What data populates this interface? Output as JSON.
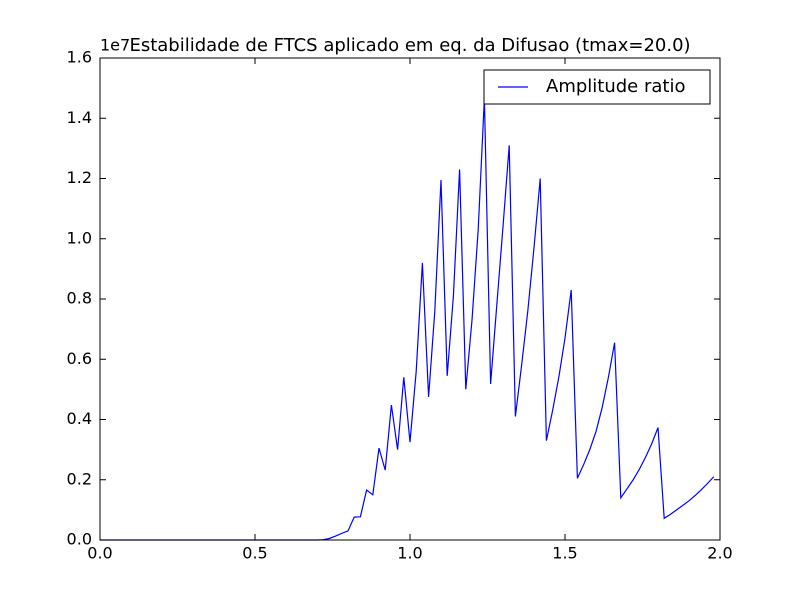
{
  "chart_data": {
    "type": "line",
    "title": "Estabilidade de FTCS aplicado em eq. da Difusao (tmax=20.0)",
    "offset_label": "1e7",
    "x": [
      0,
      0.02,
      0.04,
      0.06,
      0.08,
      0.1,
      0.12,
      0.14,
      0.16,
      0.18,
      0.2,
      0.22,
      0.24,
      0.26,
      0.28,
      0.3,
      0.32,
      0.34,
      0.36,
      0.38,
      0.4,
      0.42,
      0.44,
      0.46,
      0.48,
      0.5,
      0.52,
      0.54,
      0.56,
      0.58,
      0.6,
      0.62,
      0.64,
      0.66,
      0.68,
      0.7,
      0.72,
      0.74,
      0.76,
      0.78,
      0.8,
      0.82,
      0.84,
      0.86,
      0.88,
      0.9,
      0.92,
      0.94,
      0.96,
      0.98,
      1.0,
      1.02,
      1.04,
      1.06,
      1.08,
      1.1,
      1.12,
      1.14,
      1.16,
      1.18,
      1.2,
      1.22,
      1.24,
      1.26,
      1.28,
      1.3,
      1.32,
      1.34,
      1.36,
      1.38,
      1.4,
      1.42,
      1.44,
      1.46,
      1.48,
      1.5,
      1.52,
      1.54,
      1.56,
      1.58,
      1.6,
      1.62,
      1.64,
      1.66,
      1.68,
      1.7,
      1.72,
      1.74,
      1.76,
      1.78,
      1.8,
      1.82,
      1.84,
      1.86,
      1.88,
      1.9,
      1.92,
      1.94,
      1.96,
      1.98
    ],
    "series": [
      {
        "name": "Amplitude ratio",
        "color": "#0000ff",
        "values": [
          0,
          0,
          0,
          0,
          0,
          0,
          0,
          0,
          0,
          0,
          0,
          0,
          0,
          0,
          0,
          0,
          0,
          0,
          0,
          0,
          0,
          0,
          0,
          0,
          0,
          0,
          0,
          0,
          0,
          0,
          0,
          0,
          0,
          0,
          0,
          0,
          0.001,
          0.005,
          0.013,
          0.022,
          0.03,
          0.076,
          0.077,
          0.166,
          0.15,
          0.305,
          0.232,
          0.448,
          0.3,
          0.54,
          0.325,
          0.56,
          0.92,
          0.475,
          0.76,
          1.195,
          0.545,
          0.81,
          1.23,
          0.5,
          0.73,
          1.03,
          1.467,
          0.518,
          0.78,
          1.04,
          1.31,
          0.41,
          0.58,
          0.76,
          0.97,
          1.2,
          0.33,
          0.43,
          0.54,
          0.67,
          0.83,
          0.205,
          0.25,
          0.3,
          0.36,
          0.44,
          0.54,
          0.655,
          0.14,
          0.17,
          0.2,
          0.235,
          0.275,
          0.32,
          0.373,
          0.072,
          0.085,
          0.1,
          0.115,
          0.13,
          0.148,
          0.167,
          0.188,
          0.21
        ]
      }
    ],
    "xlim": [
      0,
      2
    ],
    "ylim": [
      0,
      1.6
    ],
    "xticks": [
      {
        "value": 0,
        "label": "0.0"
      },
      0.5,
      {
        "value": 1,
        "label": "1.0"
      },
      1.5,
      {
        "value": 2,
        "label": "2.0"
      }
    ],
    "yticks": [
      {
        "value": 0,
        "label": "0.0"
      },
      0.2,
      0.4,
      0.6,
      0.8,
      {
        "value": 1,
        "label": "1.0"
      },
      1.2,
      1.4,
      1.6
    ],
    "legend": "upper right",
    "grid": false
  }
}
